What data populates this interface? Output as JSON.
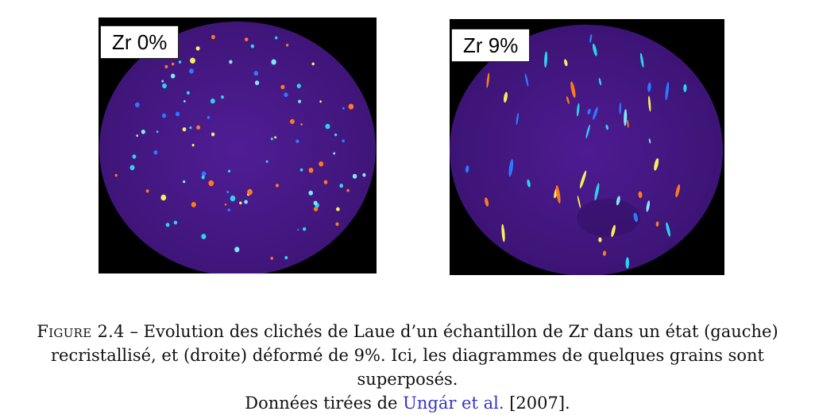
{
  "figure": {
    "panels": [
      {
        "label": "Zr 0%",
        "colors": {
          "background": "#000000",
          "disc": "#4b1a8c",
          "spots": [
            "#2ad4f0",
            "#f2f25a",
            "#ff7a1a",
            "#2a7bff"
          ]
        }
      },
      {
        "label": "Zr 9%",
        "colors": {
          "background": "#000000",
          "disc": "#4b1a8c",
          "spots": [
            "#2ad4f0",
            "#f2f25a",
            "#ff7a1a",
            "#2a7bff"
          ]
        }
      }
    ],
    "caption": {
      "figure_label": "Figure 2.4",
      "dash": " – ",
      "line1_text": "Evolution des clichés de Laue d’un échantillon de Zr dans un état (gauche)",
      "line2_text": "recristallisé, et (droite) déformé de 9%. Ici, les diagrammes de quelques grains sont superposés.",
      "line3_prefix": "Données tirées de ",
      "citation_author": "Ungár et al.",
      "citation_year": "[2007]",
      "line3_suffix": "."
    }
  }
}
